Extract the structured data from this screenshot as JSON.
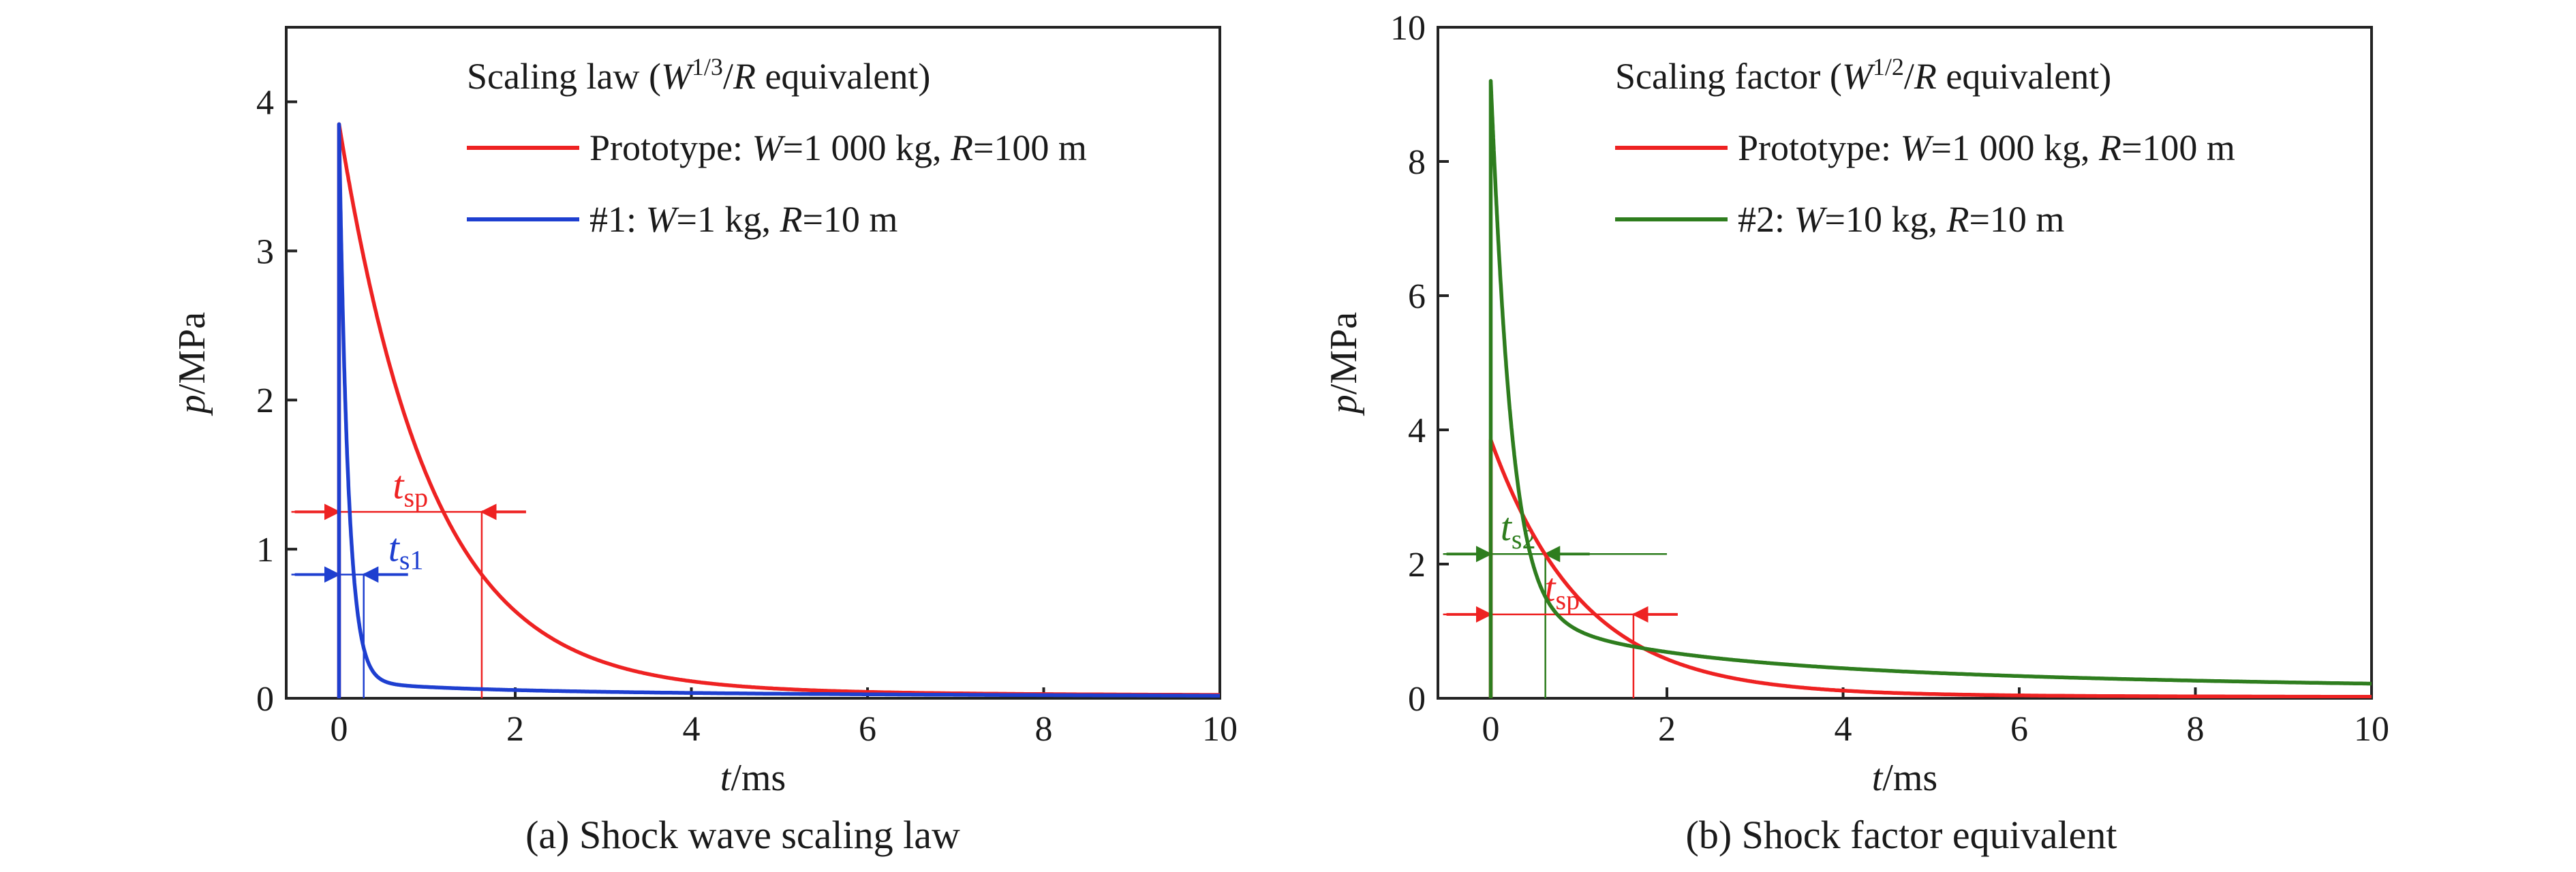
{
  "colors": {
    "prototype": "#ee2222",
    "model1": "#1e3fd0",
    "model2": "#2e7d1e",
    "axis": "#222222"
  },
  "chart_data": [
    {
      "type": "line",
      "caption": "(a) Shock wave scaling law",
      "xlabel_var": "t",
      "xlabel_unit": "/ms",
      "ylabel_var": "p",
      "ylabel_unit": "/MPa",
      "xlim": [
        -0.6,
        10
      ],
      "ylim": [
        0,
        4.5
      ],
      "xticks": [
        0,
        2,
        4,
        6,
        8,
        10
      ],
      "yticks": [
        0,
        1,
        2,
        3,
        4
      ],
      "legend": {
        "title_pre": "Scaling law (",
        "title_var": "W",
        "title_sup": "1/3",
        "title_post": "/",
        "title_var2": "R",
        "title_end": " equivalent)",
        "entries": [
          {
            "key": "prototype",
            "color": "#ee2222",
            "parts": [
              "Prototype: ",
              "W",
              "=1 000 kg, ",
              "R",
              "=100 m"
            ]
          },
          {
            "key": "model1",
            "color": "#1e3fd0",
            "parts": [
              "#1: ",
              "W",
              "=1 kg, ",
              "R",
              "=10 m"
            ]
          }
        ]
      },
      "series": [
        {
          "name": "Prototype: W=1 000 kg, R=100 m",
          "color": "#ee2222",
          "peak": 3.85,
          "theta": 1.0,
          "tail_a": 0.12,
          "tail_b": 1.5,
          "tail_c": 2.3
        },
        {
          "name": "#1: W=1 kg, R=10 m",
          "color": "#1e3fd0",
          "peak": 3.85,
          "theta": 0.1,
          "tail_a": 0.12,
          "tail_b": 0.1,
          "tail_c": 1.7
        }
      ],
      "annotations": [
        {
          "label": "t",
          "sub": "sp",
          "color": "#ee2222",
          "y": 1.25,
          "x1": 0.0,
          "x2": 1.62
        },
        {
          "label": "t",
          "sub": "s1",
          "color": "#1e3fd0",
          "y": 0.83,
          "x1": 0.0,
          "x2": 0.28
        }
      ]
    },
    {
      "type": "line",
      "caption": "(b) Shock factor equivalent",
      "xlabel_var": "t",
      "xlabel_unit": "/ms",
      "ylabel_var": "p",
      "ylabel_unit": "/MPa",
      "xlim": [
        -0.6,
        10
      ],
      "ylim": [
        0,
        10
      ],
      "xticks": [
        0,
        2,
        4,
        6,
        8,
        10
      ],
      "yticks": [
        0,
        2,
        4,
        6,
        8,
        10
      ],
      "legend": {
        "title_pre": "Scaling factor (",
        "title_var": "W",
        "title_sup": "1/2",
        "title_post": "/",
        "title_var2": "R",
        "title_end": " equivalent)",
        "entries": [
          {
            "key": "prototype",
            "color": "#ee2222",
            "parts": [
              "Prototype: ",
              "W",
              "=1 000 kg, ",
              "R",
              "=100 m"
            ]
          },
          {
            "key": "model2",
            "color": "#2e7d1e",
            "parts": [
              "#2: ",
              "W",
              "=10 kg, ",
              "R",
              "=10 m"
            ]
          }
        ]
      },
      "series": [
        {
          "name": "Prototype: W=1 000 kg, R=100 m",
          "color": "#ee2222",
          "peak": 3.85,
          "theta": 1.0,
          "tail_a": 0.12,
          "tail_b": 1.5,
          "tail_c": 2.3
        },
        {
          "name": "#2: W=10 kg, R=10 m",
          "color": "#2e7d1e",
          "peak": 9.2,
          "theta": 0.2,
          "tail_a": 1.5,
          "tail_b": 0.25,
          "tail_c": 1.7
        }
      ],
      "annotations": [
        {
          "label": "t",
          "sub": "s2",
          "color": "#2e7d1e",
          "y": 2.15,
          "x1": 0.0,
          "x2": 0.62,
          "extend_to": 2.0
        },
        {
          "label": "t",
          "sub": "sp",
          "color": "#ee2222",
          "y": 1.25,
          "x1": 0.0,
          "x2": 1.62
        }
      ]
    }
  ]
}
